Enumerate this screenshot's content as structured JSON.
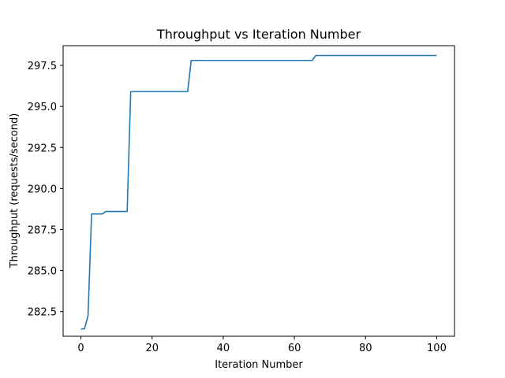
{
  "chart_data": {
    "type": "line",
    "title": "Throughput vs Iteration Number",
    "xlabel": "Iteration Number",
    "ylabel": "Throughput (requests/second)",
    "xlim": [
      -5,
      105
    ],
    "ylim": [
      281.0,
      298.7
    ],
    "xticks": [
      0,
      20,
      40,
      60,
      80,
      100
    ],
    "xtick_labels": [
      "0",
      "20",
      "40",
      "60",
      "80",
      "100"
    ],
    "yticks": [
      282.5,
      285.0,
      287.5,
      290.0,
      292.5,
      295.0,
      297.5
    ],
    "ytick_labels": [
      "282.5",
      "285.0",
      "287.5",
      "290.0",
      "292.5",
      "295.0",
      "297.5"
    ],
    "grid": false,
    "series": [
      {
        "color": "#1f77b4",
        "x": [
          0,
          1,
          2,
          3,
          4,
          5,
          6,
          7,
          8,
          9,
          10,
          11,
          12,
          13,
          14,
          15,
          16,
          17,
          18,
          19,
          20,
          21,
          22,
          23,
          24,
          25,
          26,
          27,
          28,
          29,
          30,
          31,
          32,
          33,
          34,
          35,
          36,
          37,
          38,
          39,
          40,
          41,
          42,
          43,
          44,
          45,
          46,
          47,
          48,
          49,
          50,
          51,
          52,
          53,
          54,
          55,
          56,
          57,
          58,
          59,
          60,
          61,
          62,
          63,
          64,
          65,
          66,
          67,
          68,
          69,
          70,
          71,
          72,
          73,
          74,
          75,
          76,
          77,
          78,
          79,
          80,
          81,
          82,
          83,
          84,
          85,
          86,
          87,
          88,
          89,
          90,
          91,
          92,
          93,
          94,
          95,
          96,
          97,
          98,
          99,
          100
        ],
        "y": [
          281.45,
          281.45,
          282.25,
          288.45,
          288.45,
          288.45,
          288.45,
          288.6,
          288.6,
          288.6,
          288.6,
          288.6,
          288.6,
          288.6,
          295.9,
          295.9,
          295.9,
          295.9,
          295.9,
          295.9,
          295.9,
          295.9,
          295.9,
          295.9,
          295.9,
          295.9,
          295.9,
          295.9,
          295.9,
          295.9,
          295.9,
          297.8,
          297.8,
          297.8,
          297.8,
          297.8,
          297.8,
          297.8,
          297.8,
          297.8,
          297.8,
          297.8,
          297.8,
          297.8,
          297.8,
          297.8,
          297.8,
          297.8,
          297.8,
          297.8,
          297.8,
          297.8,
          297.8,
          297.8,
          297.8,
          297.8,
          297.8,
          297.8,
          297.8,
          297.8,
          297.8,
          297.8,
          297.8,
          297.8,
          297.8,
          297.8,
          298.1,
          298.1,
          298.1,
          298.1,
          298.1,
          298.1,
          298.1,
          298.1,
          298.1,
          298.1,
          298.1,
          298.1,
          298.1,
          298.1,
          298.1,
          298.1,
          298.1,
          298.1,
          298.1,
          298.1,
          298.1,
          298.1,
          298.1,
          298.1,
          298.1,
          298.1,
          298.1,
          298.1,
          298.1,
          298.1,
          298.1,
          298.1,
          298.1,
          298.1,
          298.1
        ]
      }
    ]
  }
}
